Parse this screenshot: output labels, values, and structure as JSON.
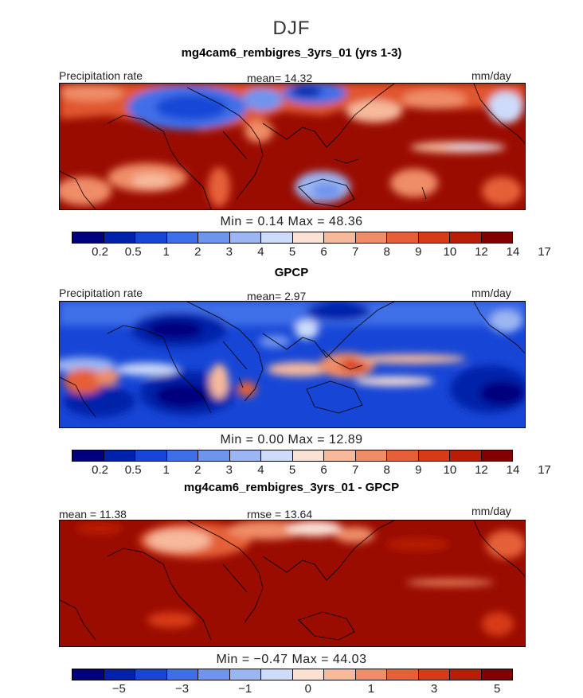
{
  "main_title": "DJF",
  "colors": [
    "#00007f",
    "#0022aa",
    "#1746d6",
    "#3f6fe8",
    "#6e94ee",
    "#9cb6f3",
    "#cddcfa",
    "#fbe0d4",
    "#f6b99c",
    "#ef8d68",
    "#e56039",
    "#d73a17",
    "#b81d06",
    "#830000"
  ],
  "panels": [
    {
      "title": "mg4cam6_rembigres_3yrs_01 (yrs 1-3)",
      "left_label": "Precipitation rate",
      "center_label": "mean=  14.32",
      "right_label": "mm/day",
      "minmax": "Min =    0.14  Max =   48.36",
      "ticks": [
        "0.2",
        "0.5",
        "1",
        "2",
        "3",
        "4",
        "5",
        "6",
        "7",
        "8",
        "9",
        "10",
        "12",
        "14",
        "17"
      ]
    },
    {
      "title": "GPCP",
      "left_label": "Precipitation rate",
      "center_label": "mean=   2.97",
      "right_label": "mm/day",
      "minmax": "Min =    0.00  Max =   12.89",
      "ticks": [
        "0.2",
        "0.5",
        "1",
        "2",
        "3",
        "4",
        "5",
        "6",
        "7",
        "8",
        "9",
        "10",
        "12",
        "14",
        "17"
      ]
    },
    {
      "title": "mg4cam6_rembigres_3yrs_01 - GPCP",
      "left_label": "mean =   11.38",
      "center_label": "rmse =   13.64",
      "right_label": "mm/day",
      "minmax": "Min =  −0.47  Max =   44.03",
      "ticks": [
        "−5",
        "−3",
        "−1",
        "0",
        "1",
        "3",
        "5"
      ]
    }
  ]
}
